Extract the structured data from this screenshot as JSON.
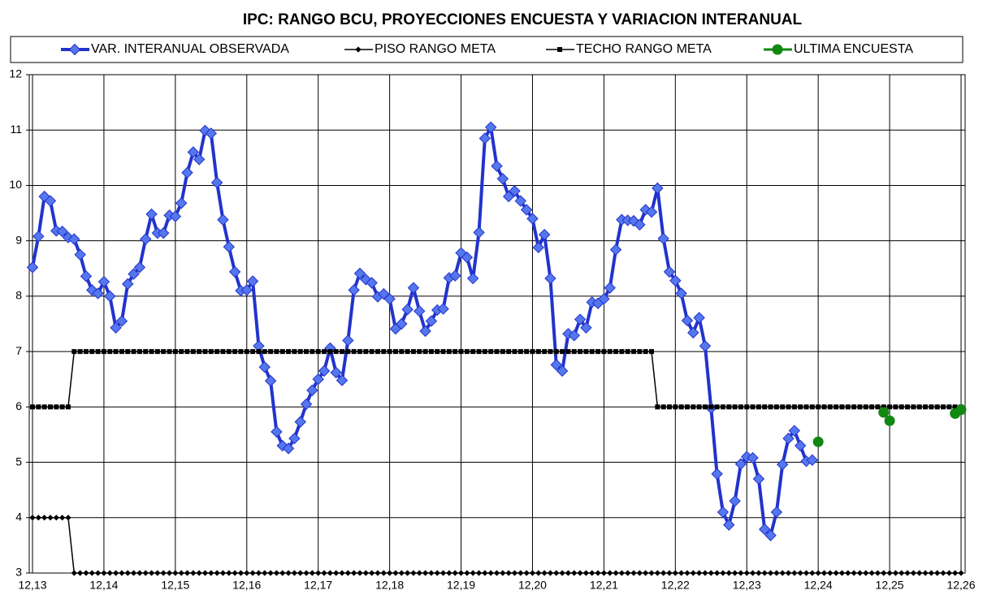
{
  "chart_data": {
    "type": "line",
    "title": "IPC: RANGO BCU, PROYECCIONES ENCUESTA Y VARIACION INTERANUAL",
    "categories": [
      "12,13",
      null,
      null,
      null,
      null,
      null,
      null,
      null,
      null,
      null,
      null,
      null,
      "12,14",
      null,
      null,
      null,
      null,
      null,
      null,
      null,
      null,
      null,
      null,
      null,
      "12,15",
      null,
      null,
      null,
      null,
      null,
      null,
      null,
      null,
      null,
      null,
      null,
      "12,16",
      null,
      null,
      null,
      null,
      null,
      null,
      null,
      null,
      null,
      null,
      null,
      "12,17",
      null,
      null,
      null,
      null,
      null,
      null,
      null,
      null,
      null,
      null,
      null,
      "12,18",
      null,
      null,
      null,
      null,
      null,
      null,
      null,
      null,
      null,
      null,
      null,
      "12,19",
      null,
      null,
      null,
      null,
      null,
      null,
      null,
      null,
      null,
      null,
      null,
      "12,20",
      null,
      null,
      null,
      null,
      null,
      null,
      null,
      null,
      null,
      null,
      null,
      "12,21",
      null,
      null,
      null,
      null,
      null,
      null,
      null,
      null,
      null,
      null,
      null,
      "12,22",
      null,
      null,
      null,
      null,
      null,
      null,
      null,
      null,
      null,
      null,
      null,
      "12,23",
      null,
      null,
      null,
      null,
      null,
      null,
      null,
      null,
      null,
      null,
      null,
      "12,24",
      null,
      null,
      null,
      null,
      null,
      null,
      null,
      null,
      null,
      null,
      null,
      "12,25",
      null,
      null,
      null,
      null,
      null,
      null,
      null,
      null,
      null,
      null,
      null,
      "12,26"
    ],
    "series": [
      {
        "name": "VAR. INTERANUAL OBSERVADA",
        "color": "#2233cc",
        "marker": "diamond",
        "marker_color": "#5577ee",
        "line_width": 4,
        "values": [
          8.52,
          9.08,
          9.8,
          9.72,
          9.18,
          9.17,
          9.06,
          9.03,
          8.75,
          8.36,
          8.11,
          8.05,
          8.26,
          8.0,
          7.43,
          7.55,
          8.22,
          8.4,
          8.52,
          9.03,
          9.48,
          9.14,
          9.14,
          9.46,
          9.44,
          9.68,
          10.23,
          10.6,
          10.47,
          10.99,
          10.94,
          10.05,
          9.38,
          8.89,
          8.44,
          8.1,
          8.11,
          8.27,
          7.1,
          6.72,
          6.47,
          5.55,
          5.3,
          5.25,
          5.43,
          5.73,
          6.05,
          6.3,
          6.5,
          6.65,
          7.06,
          6.62,
          6.48,
          7.2,
          8.11,
          8.41,
          8.3,
          8.24,
          7.99,
          8.04,
          7.95,
          7.41,
          7.5,
          7.76,
          8.15,
          7.73,
          7.37,
          7.55,
          7.75,
          7.77,
          8.33,
          8.37,
          8.78,
          8.7,
          8.32,
          9.15,
          10.85,
          11.05,
          10.35,
          10.12,
          9.8,
          9.9,
          9.72,
          9.56,
          9.4,
          8.88,
          9.11,
          8.32,
          6.76,
          6.65,
          7.32,
          7.29,
          7.58,
          7.43,
          7.89,
          7.87,
          7.95,
          8.15,
          8.84,
          9.38,
          9.37,
          9.36,
          9.29,
          9.56,
          9.52,
          9.95,
          9.04,
          8.44,
          8.28,
          8.05,
          7.56,
          7.34,
          7.61,
          7.1,
          5.98,
          4.79,
          4.1,
          3.87,
          4.3,
          4.97,
          5.1,
          5.08,
          4.7,
          3.79,
          3.68,
          4.1,
          4.96,
          5.43,
          5.57,
          5.3,
          5.02,
          5.04,
          null,
          null,
          null,
          null,
          null,
          null,
          null,
          null,
          null,
          null,
          null,
          null,
          null,
          null,
          null,
          null,
          null,
          null,
          null,
          null,
          null,
          null,
          null,
          null,
          null
        ]
      },
      {
        "name": "PISO RANGO META",
        "color": "#000000",
        "marker": "diamond",
        "marker_color": "#000000",
        "line_width": 1.5,
        "values": [
          4,
          4,
          4,
          4,
          4,
          4,
          4,
          3,
          3,
          3,
          3,
          3,
          3,
          3,
          3,
          3,
          3,
          3,
          3,
          3,
          3,
          3,
          3,
          3,
          3,
          3,
          3,
          3,
          3,
          3,
          3,
          3,
          3,
          3,
          3,
          3,
          3,
          3,
          3,
          3,
          3,
          3,
          3,
          3,
          3,
          3,
          3,
          3,
          3,
          3,
          3,
          3,
          3,
          3,
          3,
          3,
          3,
          3,
          3,
          3,
          3,
          3,
          3,
          3,
          3,
          3,
          3,
          3,
          3,
          3,
          3,
          3,
          3,
          3,
          3,
          3,
          3,
          3,
          3,
          3,
          3,
          3,
          3,
          3,
          3,
          3,
          3,
          3,
          3,
          3,
          3,
          3,
          3,
          3,
          3,
          3,
          3,
          3,
          3,
          3,
          3,
          3,
          3,
          3,
          3,
          3,
          3,
          3,
          3,
          3,
          3,
          3,
          3,
          3,
          3,
          3,
          3,
          3,
          3,
          3,
          3,
          3,
          3,
          3,
          3,
          3,
          3,
          3,
          3,
          3,
          3,
          3,
          3,
          3,
          3,
          3,
          3,
          3,
          3,
          3,
          3,
          3,
          3,
          3,
          3,
          3,
          3,
          3,
          3,
          3,
          3,
          3,
          3,
          3,
          3,
          3,
          3
        ]
      },
      {
        "name": "TECHO RANGO META",
        "color": "#000000",
        "marker": "square",
        "marker_color": "#000000",
        "line_width": 1.5,
        "values": [
          6,
          6,
          6,
          6,
          6,
          6,
          6,
          7,
          7,
          7,
          7,
          7,
          7,
          7,
          7,
          7,
          7,
          7,
          7,
          7,
          7,
          7,
          7,
          7,
          7,
          7,
          7,
          7,
          7,
          7,
          7,
          7,
          7,
          7,
          7,
          7,
          7,
          7,
          7,
          7,
          7,
          7,
          7,
          7,
          7,
          7,
          7,
          7,
          7,
          7,
          7,
          7,
          7,
          7,
          7,
          7,
          7,
          7,
          7,
          7,
          7,
          7,
          7,
          7,
          7,
          7,
          7,
          7,
          7,
          7,
          7,
          7,
          7,
          7,
          7,
          7,
          7,
          7,
          7,
          7,
          7,
          7,
          7,
          7,
          7,
          7,
          7,
          7,
          7,
          7,
          7,
          7,
          7,
          7,
          7,
          7,
          7,
          7,
          7,
          7,
          7,
          7,
          7,
          7,
          7,
          6,
          6,
          6,
          6,
          6,
          6,
          6,
          6,
          6,
          6,
          6,
          6,
          6,
          6,
          6,
          6,
          6,
          6,
          6,
          6,
          6,
          6,
          6,
          6,
          6,
          6,
          6,
          6,
          6,
          6,
          6,
          6,
          6,
          6,
          6,
          6,
          6,
          6,
          6,
          6,
          6,
          6,
          6,
          6,
          6,
          6,
          6,
          6,
          6,
          6,
          6,
          6
        ]
      },
      {
        "name": "ULTIMA ENCUESTA",
        "color": "#118811",
        "marker": "circle",
        "marker_color": "#118811",
        "line_width": 3,
        "values": [
          null,
          null,
          null,
          null,
          null,
          null,
          null,
          null,
          null,
          null,
          null,
          null,
          null,
          null,
          null,
          null,
          null,
          null,
          null,
          null,
          null,
          null,
          null,
          null,
          null,
          null,
          null,
          null,
          null,
          null,
          null,
          null,
          null,
          null,
          null,
          null,
          null,
          null,
          null,
          null,
          null,
          null,
          null,
          null,
          null,
          null,
          null,
          null,
          null,
          null,
          null,
          null,
          null,
          null,
          null,
          null,
          null,
          null,
          null,
          null,
          null,
          null,
          null,
          null,
          null,
          null,
          null,
          null,
          null,
          null,
          null,
          null,
          null,
          null,
          null,
          null,
          null,
          null,
          null,
          null,
          null,
          null,
          null,
          null,
          null,
          null,
          null,
          null,
          null,
          null,
          null,
          null,
          null,
          null,
          null,
          null,
          null,
          null,
          null,
          null,
          null,
          null,
          null,
          null,
          null,
          null,
          null,
          null,
          null,
          null,
          null,
          null,
          null,
          null,
          null,
          null,
          null,
          null,
          null,
          null,
          null,
          null,
          null,
          null,
          null,
          null,
          null,
          null,
          null,
          null,
          null,
          null,
          5.37,
          null,
          null,
          null,
          null,
          null,
          null,
          null,
          null,
          null,
          null,
          5.9,
          5.75,
          null,
          null,
          null,
          null,
          null,
          null,
          null,
          null,
          null,
          null,
          5.88,
          5.95
        ]
      }
    ],
    "ylim": [
      3,
      12
    ],
    "yticks": [
      3,
      4,
      5,
      6,
      7,
      8,
      9,
      10,
      11,
      12
    ],
    "grid": true,
    "legend": "top"
  }
}
